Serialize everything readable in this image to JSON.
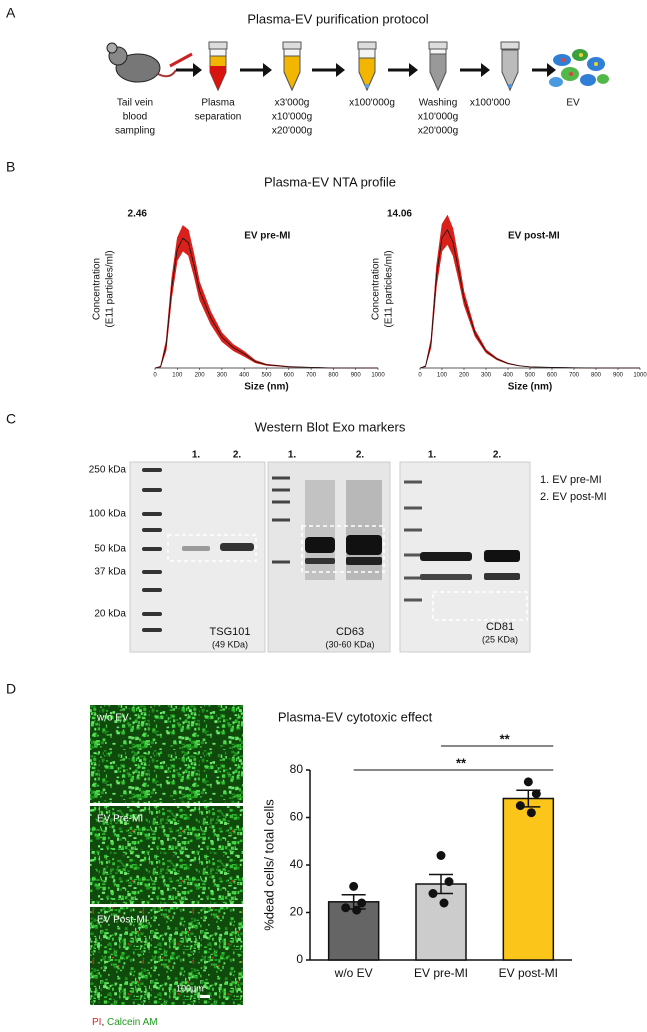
{
  "panel_labels": [
    "A",
    "B",
    "C",
    "D"
  ],
  "protocol": {
    "title": "Plasma-EV purification protocol",
    "steps": [
      [
        "Tail vein",
        "blood",
        "sampling"
      ],
      [
        "Plasma",
        "separation"
      ],
      [
        "x3'000g",
        "x10'000g",
        "x20'000g"
      ],
      [
        "x100'000g"
      ],
      [
        "Washing",
        "x10'000g",
        "x20'000g"
      ],
      [
        "x100'000"
      ],
      [
        "EV"
      ]
    ]
  },
  "nta": {
    "title": "Plasma-EV NTA profile"
  },
  "chart_data": [
    {
      "type": "line",
      "x_label": "Size (nm)",
      "y_label": [
        "Concentration",
        "(E11 particles/ml)"
      ],
      "x": [
        0,
        25,
        50,
        75,
        100,
        125,
        150,
        175,
        200,
        250,
        300,
        350,
        400,
        450,
        500,
        600,
        700,
        800,
        900,
        1000
      ],
      "series": [
        {
          "name": "EV pre-MI",
          "color": "#d9211b",
          "values": [
            0,
            0.02,
            0.35,
            1.25,
            1.85,
            2.02,
            1.95,
            1.6,
            1.2,
            0.78,
            0.48,
            0.32,
            0.22,
            0.1,
            0.05,
            0.02,
            0.01,
            0,
            0,
            0
          ],
          "errors": [
            0,
            0.01,
            0.08,
            0.15,
            0.18,
            0.2,
            0.2,
            0.17,
            0.14,
            0.1,
            0.07,
            0.05,
            0.04,
            0.02,
            0.01,
            0.005,
            0,
            0,
            0,
            0
          ]
        }
      ],
      "xlim": [
        0,
        1000
      ],
      "xticks": [
        0,
        100,
        200,
        300,
        400,
        500,
        600,
        700,
        800,
        900,
        1000
      ],
      "ylim": [
        0,
        2.46
      ],
      "yticks": [
        2.46
      ]
    },
    {
      "type": "line",
      "x_label": "Size (nm)",
      "y_label": [
        "Concentration",
        "(E11 particles/ml)"
      ],
      "x": [
        0,
        25,
        50,
        75,
        100,
        125,
        150,
        175,
        200,
        250,
        300,
        350,
        400,
        450,
        500,
        600,
        700,
        800,
        900,
        1000
      ],
      "series": [
        {
          "name": "EV post-MI",
          "color": "#d9211b",
          "values": [
            0,
            0.15,
            2.2,
            8.2,
            11.6,
            12.3,
            11.2,
            8.8,
            6.2,
            3.1,
            1.5,
            0.8,
            0.4,
            0.2,
            0.1,
            0.05,
            0.02,
            0,
            0,
            0
          ],
          "errors": [
            0,
            0.05,
            0.4,
            0.9,
            1.2,
            1.3,
            1.2,
            0.9,
            0.6,
            0.3,
            0.15,
            0.08,
            0.04,
            0.02,
            0.01,
            0,
            0,
            0,
            0,
            0
          ]
        }
      ],
      "xlim": [
        0,
        1000
      ],
      "xticks": [
        0,
        100,
        200,
        300,
        400,
        500,
        600,
        700,
        800,
        900,
        1000
      ],
      "ylim": [
        0,
        14.06
      ],
      "yticks": [
        14.06
      ]
    },
    {
      "type": "bar",
      "title": "Plasma-EV cytotoxic effect",
      "y_label": "%dead cells/ total cells",
      "categories": [
        "w/o EV",
        "EV pre-MI",
        "EV post-MI"
      ],
      "values": [
        24.5,
        32,
        68
      ],
      "errors": [
        3,
        4,
        3.5
      ],
      "points": [
        [
          31,
          24,
          22,
          21
        ],
        [
          44,
          33,
          28,
          24
        ],
        [
          75,
          70,
          65,
          62
        ]
      ],
      "colors": [
        "#656565",
        "#cccccc",
        "#fbc51a"
      ],
      "ylim": [
        0,
        80
      ],
      "yticks": [
        0,
        20,
        40,
        60,
        80
      ],
      "annotations": [
        {
          "text": "**",
          "between": [
            0,
            2
          ]
        },
        {
          "text": "**",
          "between": [
            1,
            2
          ]
        }
      ]
    }
  ],
  "western_blot": {
    "title": "Western Blot Exo markers",
    "ladder": [
      "250 kDa",
      "100 kDa",
      "50 kDa",
      "37 kDa",
      "20 kDa"
    ],
    "blots": [
      {
        "lanes": [
          "1.",
          "2."
        ],
        "name": "TSG101",
        "size": "(49 KDa)"
      },
      {
        "lanes": [
          "1.",
          "2."
        ],
        "name": "CD63",
        "size": "(30-60 KDa)"
      },
      {
        "lanes": [
          "1.",
          "2."
        ],
        "name": "CD81",
        "size": "(25 KDa)"
      }
    ],
    "legend": [
      "1. EV pre-MI",
      "2. EV post-MI"
    ]
  },
  "cytotoxic": {
    "images": [
      "w/o EV",
      "EV Pre-MI",
      "EV Post-MI"
    ],
    "scale_bar": "100µm",
    "stains": [
      {
        "text": "PI",
        "color": "#d82020"
      },
      {
        "text": "Calcein AM",
        "color": "#1f9a1f"
      }
    ],
    "caption_separator": ", "
  }
}
